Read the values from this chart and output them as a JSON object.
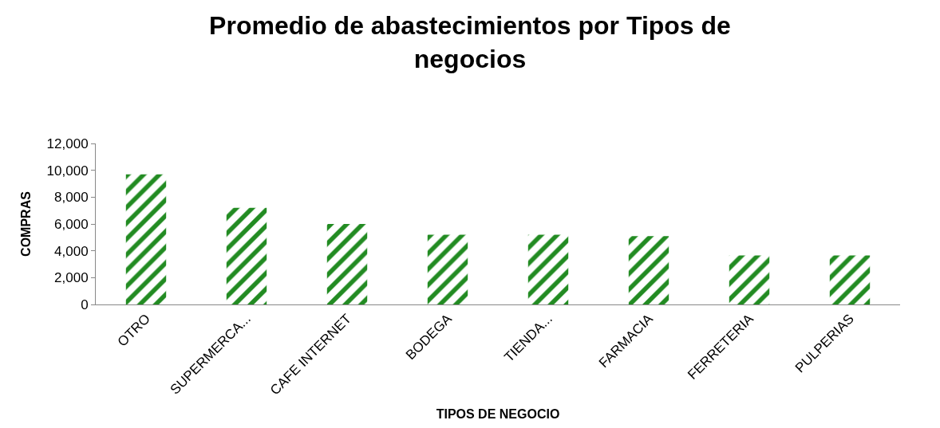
{
  "chart_data": {
    "type": "bar",
    "title": "Promedio de abastecimientos por Tipos de negocios",
    "xlabel": "TIPOS DE NEGOCIO",
    "ylabel": "COMPRAS",
    "categories": [
      "OTRO",
      "SUPERMERCA...",
      "CAFE INTERNET",
      "BODEGA",
      "TIENDA...",
      "FARMACIA",
      "FERRETERIA",
      "PULPERIAS"
    ],
    "values": [
      9700,
      7200,
      6000,
      5200,
      5200,
      5100,
      3650,
      3650
    ],
    "color": "#228b22",
    "ylim": [
      0,
      12000
    ],
    "yticks": [
      {
        "value": 0,
        "label": "0"
      },
      {
        "value": 2000,
        "label": "2,000"
      },
      {
        "value": 4000,
        "label": "4,000"
      },
      {
        "value": 6000,
        "label": "6,000"
      },
      {
        "value": 8000,
        "label": "8,000"
      },
      {
        "value": 10000,
        "label": "10,000"
      },
      {
        "value": 12000,
        "label": "12,000"
      }
    ]
  }
}
